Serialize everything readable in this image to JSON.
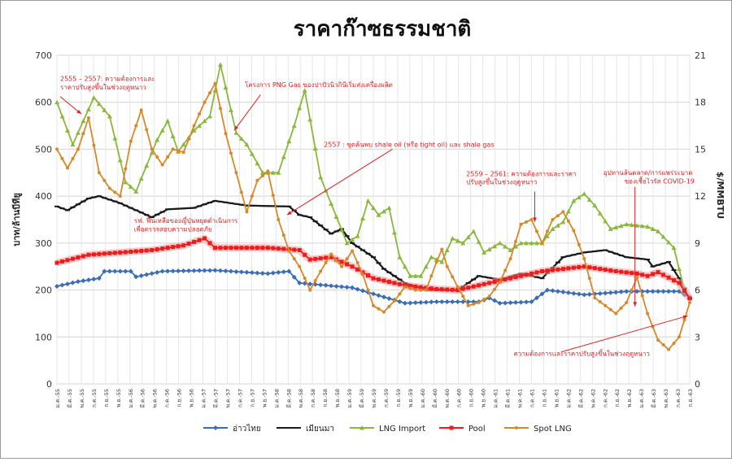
{
  "chart_data": {
    "type": "line",
    "title": "ราคาก๊าซธรรมชาติ",
    "ylabel_left": "บาท/ล้านบีทียู",
    "ylabel_right": "$/MMBTU",
    "ylim_left": [
      0,
      700
    ],
    "ylim_right": [
      0,
      21
    ],
    "yticks_left": [
      "0",
      "100",
      "200",
      "300",
      "400",
      "500",
      "600",
      "700"
    ],
    "yticks_right": [
      "0",
      "3",
      "6",
      "9",
      "12",
      "15",
      "18",
      "21"
    ],
    "xticks": [
      "ม.ค.-55",
      "มี.ค.-55",
      "พ.ค.-55",
      "ก.ค.-55",
      "ก.ย.-55",
      "พ.ย.-55",
      "ม.ค.-56",
      "มี.ค.-56",
      "พ.ค.-56",
      "ก.ค.-56",
      "ก.ย.-56",
      "พ.ย.-56",
      "ม.ค.-57",
      "มี.ค.-57",
      "พ.ค.-57",
      "ก.ค.-57",
      "ก.ย.-57",
      "พ.ย.-57",
      "ม.ค.-58",
      "มี.ค.-58",
      "พ.ค.-58",
      "ก.ค.-58",
      "ก.ย.-58",
      "พ.ย.-58",
      "ม.ค.-59",
      "มี.ค.-59",
      "พ.ค.-59",
      "ก.ค.-59",
      "ก.ย.-59",
      "พ.ย.-59",
      "ม.ค.-60",
      "มี.ค.-60",
      "พ.ค.-60",
      "ก.ค.-60",
      "ก.ย.-60",
      "พ.ย.-60",
      "ม.ค.-61",
      "มี.ค.-61",
      "พ.ค.-61",
      "ก.ค.-61",
      "ก.ย.-61",
      "พ.ย.-61",
      "ม.ค.-62",
      "มี.ค.-62",
      "พ.ค.-62",
      "ก.ค.-62",
      "ก.ย.-62",
      "พ.ย.-62",
      "ม.ค.-63",
      "มี.ค.-63",
      "พ.ค.-63",
      "ก.ค.-63",
      "ก.ย.-63"
    ],
    "grid": true,
    "legend": "bottom",
    "series": [
      {
        "name": "อ่าวไทย",
        "axis": "left",
        "color": "#3a6db5",
        "marker": "diamond",
        "knots": [
          [
            0,
            208
          ],
          [
            4,
            218
          ],
          [
            8,
            225
          ],
          [
            9,
            240
          ],
          [
            14,
            240
          ],
          [
            15,
            228
          ],
          [
            20,
            240
          ],
          [
            30,
            242
          ],
          [
            40,
            235
          ],
          [
            44,
            240
          ],
          [
            46,
            215
          ],
          [
            56,
            205
          ],
          [
            66,
            172
          ],
          [
            72,
            175
          ],
          [
            80,
            175
          ],
          [
            82,
            183
          ],
          [
            84,
            172
          ],
          [
            90,
            175
          ],
          [
            93,
            200
          ],
          [
            100,
            190
          ],
          [
            108,
            197
          ],
          [
            118,
            197
          ],
          [
            119,
            190
          ],
          [
            120,
            185
          ]
        ]
      },
      {
        "name": "เมียนมา",
        "axis": "left",
        "color": "#1a1a1a",
        "marker": "dash",
        "knots": [
          [
            0,
            378
          ],
          [
            2,
            370
          ],
          [
            6,
            395
          ],
          [
            8,
            400
          ],
          [
            12,
            385
          ],
          [
            18,
            355
          ],
          [
            21,
            372
          ],
          [
            26,
            375
          ],
          [
            30,
            390
          ],
          [
            36,
            380
          ],
          [
            44,
            378
          ],
          [
            46,
            360
          ],
          [
            48,
            355
          ],
          [
            52,
            320
          ],
          [
            54,
            330
          ],
          [
            56,
            300
          ],
          [
            60,
            270
          ],
          [
            62,
            245
          ],
          [
            66,
            215
          ],
          [
            70,
            200
          ],
          [
            76,
            200
          ],
          [
            80,
            230
          ],
          [
            84,
            222
          ],
          [
            88,
            235
          ],
          [
            92,
            225
          ],
          [
            96,
            270
          ],
          [
            100,
            280
          ],
          [
            104,
            285
          ],
          [
            108,
            270
          ],
          [
            112,
            265
          ],
          [
            113,
            250
          ],
          [
            116,
            260
          ],
          [
            118,
            225
          ],
          [
            120,
            182
          ]
        ]
      },
      {
        "name": "LNG Import",
        "axis": "left",
        "color": "#8ab83c",
        "marker": "triangle",
        "knots": [
          [
            0,
            600
          ],
          [
            3,
            510
          ],
          [
            7,
            610
          ],
          [
            10,
            570
          ],
          [
            13,
            430
          ],
          [
            15,
            410
          ],
          [
            19,
            520
          ],
          [
            21,
            560
          ],
          [
            23,
            495
          ],
          [
            26,
            540
          ],
          [
            29,
            570
          ],
          [
            31,
            680
          ],
          [
            34,
            535
          ],
          [
            36,
            510
          ],
          [
            39,
            450
          ],
          [
            42,
            450
          ],
          [
            45,
            550
          ],
          [
            47,
            625
          ],
          [
            50,
            440
          ],
          [
            55,
            300
          ],
          [
            57,
            315
          ],
          [
            59,
            390
          ],
          [
            61,
            360
          ],
          [
            63,
            375
          ],
          [
            65,
            270
          ],
          [
            67,
            230
          ],
          [
            69,
            230
          ],
          [
            71,
            270
          ],
          [
            73,
            260
          ],
          [
            75,
            310
          ],
          [
            77,
            300
          ],
          [
            79,
            325
          ],
          [
            81,
            280
          ],
          [
            84,
            300
          ],
          [
            86,
            285
          ],
          [
            88,
            300
          ],
          [
            92,
            300
          ],
          [
            94,
            330
          ],
          [
            96,
            345
          ],
          [
            98,
            390
          ],
          [
            100,
            405
          ],
          [
            102,
            380
          ],
          [
            105,
            330
          ],
          [
            108,
            340
          ],
          [
            112,
            335
          ],
          [
            114,
            325
          ],
          [
            117,
            290
          ],
          [
            119,
            200
          ],
          [
            120,
            185
          ]
        ]
      },
      {
        "name": "Pool",
        "axis": "left",
        "color": "#ee1c1c",
        "marker": "square",
        "knots": [
          [
            0,
            258
          ],
          [
            6,
            275
          ],
          [
            12,
            280
          ],
          [
            18,
            285
          ],
          [
            24,
            295
          ],
          [
            28,
            310
          ],
          [
            30,
            290
          ],
          [
            40,
            290
          ],
          [
            46,
            285
          ],
          [
            48,
            265
          ],
          [
            52,
            270
          ],
          [
            56,
            250
          ],
          [
            60,
            225
          ],
          [
            66,
            210
          ],
          [
            72,
            202
          ],
          [
            76,
            200
          ],
          [
            82,
            215
          ],
          [
            86,
            225
          ],
          [
            92,
            240
          ],
          [
            100,
            250
          ],
          [
            106,
            240
          ],
          [
            110,
            235
          ],
          [
            112,
            230
          ],
          [
            114,
            238
          ],
          [
            118,
            215
          ],
          [
            120,
            182
          ]
        ]
      },
      {
        "name": "Spot LNG",
        "axis": "right",
        "color": "#d6892a",
        "marker": "circle",
        "knots": [
          [
            0,
            15.0
          ],
          [
            2,
            13.8
          ],
          [
            4,
            15.0
          ],
          [
            6,
            17.0
          ],
          [
            8,
            13.5
          ],
          [
            10,
            12.5
          ],
          [
            12,
            12.0
          ],
          [
            14,
            15.5
          ],
          [
            16,
            17.5
          ],
          [
            18,
            15.0
          ],
          [
            20,
            14.0
          ],
          [
            22,
            15.0
          ],
          [
            24,
            14.8
          ],
          [
            26,
            16.5
          ],
          [
            28,
            18.0
          ],
          [
            30,
            19.2
          ],
          [
            32,
            16.0
          ],
          [
            34,
            13.5
          ],
          [
            36,
            11.0
          ],
          [
            38,
            13.0
          ],
          [
            40,
            13.6
          ],
          [
            42,
            10.5
          ],
          [
            44,
            8.5
          ],
          [
            46,
            7.5
          ],
          [
            48,
            6.0
          ],
          [
            50,
            7.2
          ],
          [
            52,
            8.3
          ],
          [
            54,
            7.5
          ],
          [
            56,
            8.5
          ],
          [
            58,
            7.0
          ],
          [
            60,
            5.0
          ],
          [
            62,
            4.6
          ],
          [
            64,
            5.3
          ],
          [
            66,
            6.2
          ],
          [
            68,
            6.0
          ],
          [
            70,
            6.0
          ],
          [
            72,
            7.8
          ],
          [
            73,
            8.6
          ],
          [
            74,
            7.5
          ],
          [
            76,
            6.2
          ],
          [
            78,
            5.0
          ],
          [
            80,
            5.2
          ],
          [
            82,
            5.6
          ],
          [
            84,
            6.5
          ],
          [
            86,
            8.0
          ],
          [
            88,
            10.2
          ],
          [
            90,
            10.5
          ],
          [
            92,
            9.0
          ],
          [
            94,
            10.5
          ],
          [
            96,
            11.0
          ],
          [
            98,
            9.8
          ],
          [
            100,
            8.0
          ],
          [
            102,
            5.5
          ],
          [
            104,
            5.0
          ],
          [
            106,
            4.5
          ],
          [
            108,
            5.2
          ],
          [
            110,
            6.8
          ],
          [
            112,
            4.5
          ],
          [
            114,
            2.8
          ],
          [
            116,
            2.2
          ],
          [
            118,
            3.0
          ],
          [
            120,
            5.2
          ]
        ]
      }
    ],
    "annotations": [
      {
        "text": "2555 – 2557: ความต้องการและ",
        "x": 0,
        "y": 645
      },
      {
        "text": "ราคาปรับสูงขึ้นในช่วงฤดูหนาว",
        "x": 0,
        "y": 627
      },
      {
        "text": "โครงการ PNG Gas ของปาปัวนิวกินีเริ่มส่งเครื่องผลิต",
        "x": 35,
        "y": 632
      },
      {
        "text": "2557 : ขุดค้นพบ shale oil (หรือ tight oil) และ shale gas",
        "x": 50,
        "y": 505
      },
      {
        "text": "2559 – 2561: ความต้องการและราคา",
        "x": 77,
        "y": 443
      },
      {
        "text": "ปรับสูงขึ้นในช่วงฤดูหนาว",
        "x": 77,
        "y": 425
      },
      {
        "text": "อุปทานล้นตลาด/การแพร่ระบาด",
        "x": 103,
        "y": 445
      },
      {
        "text": "ของเชื้อไวรัส COVID-19",
        "x": 107,
        "y": 427
      },
      {
        "text": "รฟ. ฟื้นเหลือของญี่ปุ่นหยุดดำเนินการ",
        "x": 14,
        "y": 343
      },
      {
        "text": "เพื่อตรวจสอบความปลอดภัย",
        "x": 14,
        "y": 325
      },
      {
        "text": "ความต้องการและราคาปรับสูงขึ้นในช่วงฤดูหนาว",
        "x": 86,
        "y": 60
      }
    ]
  }
}
